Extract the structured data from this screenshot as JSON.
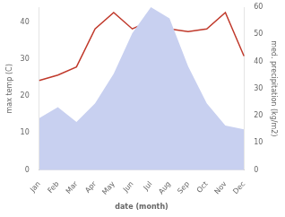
{
  "chart_data": {
    "type": "line",
    "categories": [
      "Jan",
      "Feb",
      "Mar",
      "Apr",
      "May",
      "Jun",
      "Jul",
      "Aug",
      "Sep",
      "Oct",
      "Nov",
      "Dec"
    ],
    "series": [
      {
        "type": "area",
        "color": "#c8d0f0",
        "values": [
          14,
          17,
          13,
          18,
          26,
          37,
          44,
          41,
          28,
          18,
          12,
          11
        ]
      },
      {
        "type": "line",
        "color": "#c0392b",
        "axis": "y2",
        "values": [
          33,
          35,
          38,
          52,
          58,
          52,
          55,
          52,
          51,
          52,
          58,
          42
        ]
      }
    ],
    "xlabel": "date (month)",
    "ylabel": "max temp (C)",
    "y2label": "med. precipitation (kg/m2)",
    "ylim": [
      0,
      44
    ],
    "yticks": [
      0,
      10,
      20,
      30,
      40
    ],
    "y2lim": [
      0,
      60
    ],
    "y2ticks": [
      0,
      10,
      20,
      30,
      40,
      50,
      60
    ],
    "grid": false
  }
}
